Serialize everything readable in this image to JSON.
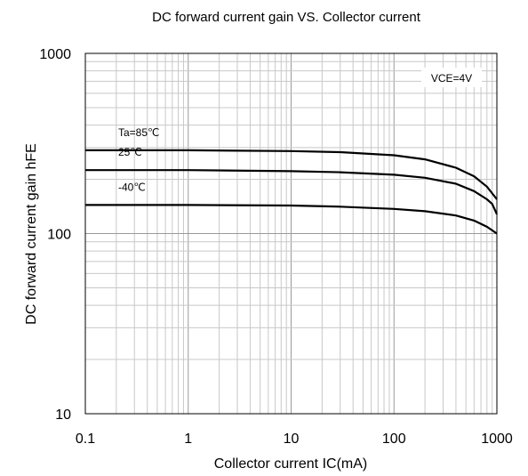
{
  "chart_data": {
    "type": "line",
    "title": "DC forward current gain VS. Collector current",
    "xlabel": "Collector current IC(mA)",
    "ylabel": "DC forward current gain hFE",
    "x_scale": "log",
    "y_scale": "log",
    "xlim": [
      0.1,
      1000
    ],
    "ylim": [
      10,
      1000
    ],
    "x_ticks": [
      "0.1",
      "1",
      "10",
      "100",
      "1000"
    ],
    "y_ticks": [
      "10",
      "100",
      "1000"
    ],
    "grid": true,
    "condition": "VCE=4V",
    "series": [
      {
        "name": "Ta=85℃",
        "points": [
          [
            0.1,
            290
          ],
          [
            1,
            290
          ],
          [
            10,
            287
          ],
          [
            30,
            283
          ],
          [
            100,
            272
          ],
          [
            200,
            258
          ],
          [
            400,
            232
          ],
          [
            600,
            208
          ],
          [
            800,
            182
          ],
          [
            1000,
            155
          ]
        ]
      },
      {
        "name": "25℃",
        "points": [
          [
            0.1,
            225
          ],
          [
            1,
            225
          ],
          [
            10,
            222
          ],
          [
            30,
            219
          ],
          [
            100,
            212
          ],
          [
            200,
            204
          ],
          [
            400,
            189
          ],
          [
            600,
            172
          ],
          [
            800,
            155
          ],
          [
            900,
            146
          ],
          [
            1000,
            128
          ]
        ]
      },
      {
        "name": "-40℃",
        "points": [
          [
            0.1,
            144
          ],
          [
            1,
            144
          ],
          [
            10,
            143
          ],
          [
            30,
            141
          ],
          [
            100,
            137
          ],
          [
            200,
            133
          ],
          [
            400,
            126
          ],
          [
            600,
            118
          ],
          [
            800,
            109
          ],
          [
            1000,
            100
          ]
        ]
      }
    ]
  }
}
